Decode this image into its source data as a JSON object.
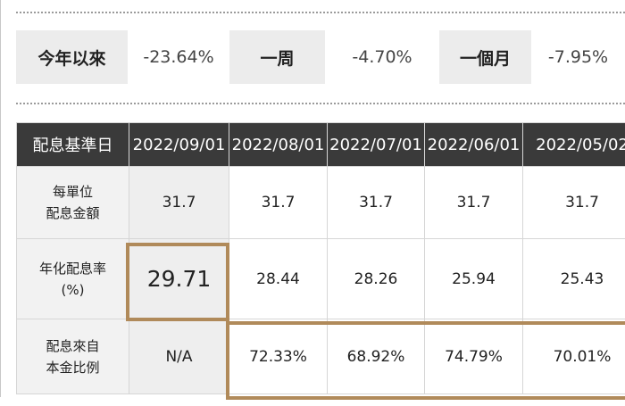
{
  "performance": [
    {
      "label": "今年以來",
      "value": "-23.64%"
    },
    {
      "label": "一周",
      "value": "-4.70%"
    },
    {
      "label": "一個月",
      "value": "-7.95%"
    }
  ],
  "dividend_table": {
    "header_label": "配息基準日",
    "dates": [
      "2022/09/01",
      "2022/08/01",
      "2022/07/01",
      "2022/06/01",
      "2022/05/02"
    ],
    "rows": [
      {
        "label_line1": "每單位",
        "label_line2": "配息金額",
        "values": [
          "31.7",
          "31.7",
          "31.7",
          "31.7",
          "31.7"
        ]
      },
      {
        "label_line1": "年化配息率",
        "label_line2": "(%)",
        "values": [
          "29.71",
          "28.44",
          "28.26",
          "25.94",
          "25.43"
        ]
      },
      {
        "label_line1": "配息來自",
        "label_line2": "本金比例",
        "values": [
          "N/A",
          "72.33%",
          "68.92%",
          "74.79%",
          "70.01%"
        ]
      }
    ]
  },
  "highlight_color": "#b08a5a"
}
